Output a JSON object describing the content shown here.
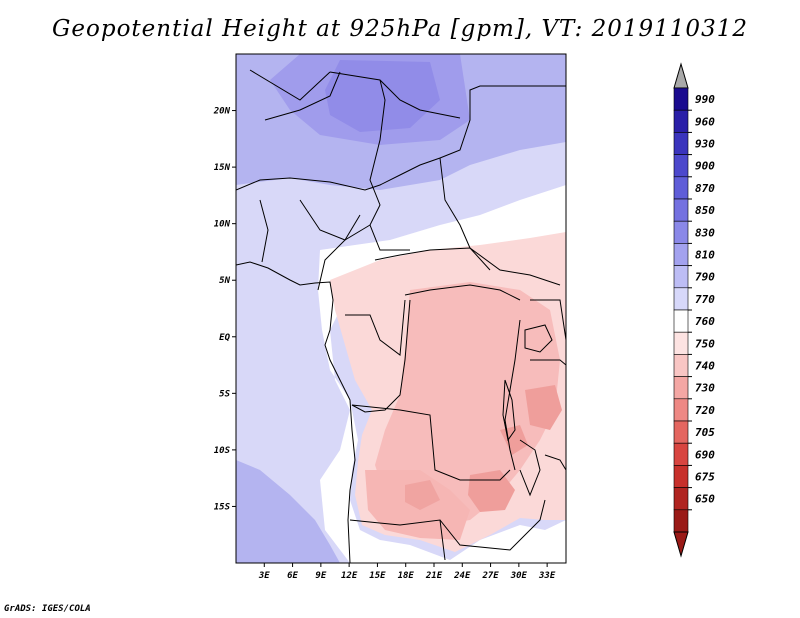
{
  "title": "Geopotential Height at 925hPa [gpm], VT: 2019110312",
  "footer": "GrADS: IGES/COLA",
  "map": {
    "lon_range": [
      0,
      35
    ],
    "lat_range": [
      -20,
      25
    ],
    "lon_ticks": [
      3,
      6,
      9,
      12,
      15,
      18,
      21,
      24,
      27,
      30,
      33
    ],
    "lon_tick_labels": [
      "3E",
      "6E",
      "9E",
      "12E",
      "15E",
      "18E",
      "21E",
      "24E",
      "27E",
      "30E",
      "33E"
    ],
    "lat_ticks": [
      20,
      15,
      10,
      5,
      0,
      -5,
      -10,
      -15
    ],
    "lat_tick_labels": [
      "20N",
      "15N",
      "10N",
      "5N",
      "EQ",
      "5S",
      "10S",
      "15S"
    ]
  },
  "colorbar": {
    "levels": [
      "990",
      "960",
      "930",
      "900",
      "870",
      "850",
      "830",
      "810",
      "790",
      "770",
      "760",
      "750",
      "740",
      "730",
      "720",
      "705",
      "690",
      "675",
      "650"
    ],
    "colors": [
      "#1a0b8f",
      "#2a1fa8",
      "#3a34bd",
      "#4c48cc",
      "#5f5dd8",
      "#7471e0",
      "#8a88e8",
      "#a3a2ef",
      "#bdbdf5",
      "#d7d8fa",
      "#ffffff",
      "#fde3e2",
      "#f9c6c4",
      "#f4a7a4",
      "#ee8884",
      "#e46660",
      "#d84540",
      "#c7302b",
      "#b02420",
      "#9a1a17"
    ],
    "over_color": "#a9a9a9",
    "under_color": "#9a1a17"
  }
}
